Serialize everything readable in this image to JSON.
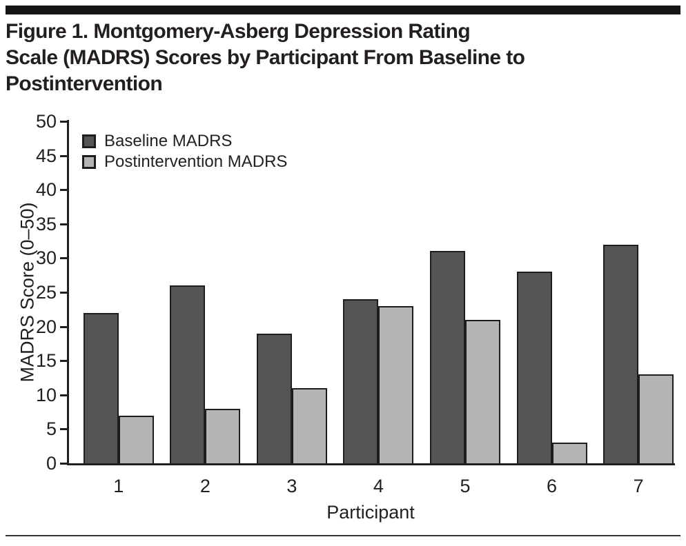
{
  "figure": {
    "title_lines": [
      "Figure 1. Montgomery-Asberg Depression Rating",
      "Scale (MADRS) Scores by Participant From Baseline to",
      "Postintervention"
    ]
  },
  "chart_data": {
    "type": "bar",
    "categories": [
      "1",
      "2",
      "3",
      "4",
      "5",
      "6",
      "7"
    ],
    "series": [
      {
        "name": "Baseline MADRS",
        "color": "#555557",
        "values": [
          22,
          26,
          19,
          24,
          31,
          28,
          32
        ]
      },
      {
        "name": "Postintervention MADRS",
        "color": "#b4b5b5",
        "values": [
          7,
          8,
          11,
          23,
          21,
          3,
          13
        ]
      }
    ],
    "title": "Figure 1. Montgomery-Asberg Depression Rating Scale (MADRS) Scores by Participant From Baseline to Postintervention",
    "xlabel": "Participant",
    "ylabel": "MADRS Score (0–50)",
    "ylim": [
      0,
      50
    ],
    "yticks": [
      0,
      5,
      10,
      15,
      20,
      25,
      30,
      35,
      40,
      45,
      50
    ],
    "grid": false,
    "legend_position": "top-left",
    "axis_color": "#231f20",
    "bar_border_color": "#1d1d1f"
  }
}
